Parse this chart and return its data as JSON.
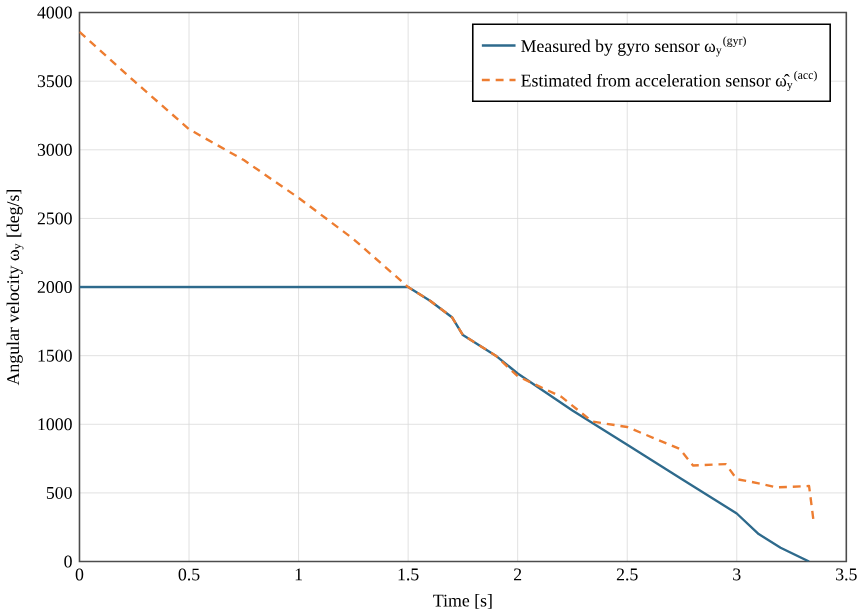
{
  "chart_data": {
    "type": "line",
    "xlabel": "Time [s]",
    "ylabel": "Angular velocity ω$_{y}$ [deg/s]",
    "xlim": [
      0,
      3.5
    ],
    "ylim": [
      0,
      4000
    ],
    "xticks": [
      0,
      0.5,
      1,
      1.5,
      2,
      2.5,
      3,
      3.5
    ],
    "yticks": [
      0,
      500,
      1000,
      1500,
      2000,
      2500,
      3000,
      3500,
      4000
    ],
    "grid": true,
    "legend": "top right",
    "series": [
      {
        "name": "Measured by gyro sensor ω$_{y}$$^{(gyr)}$",
        "color": "#2e6a8c",
        "line_style": "solid",
        "x": [
          0,
          1.5,
          1.6,
          1.7,
          1.75,
          1.9,
          2.0,
          2.25,
          2.5,
          2.75,
          3.0,
          3.1,
          3.2,
          3.33
        ],
        "values": [
          2000,
          2000,
          1900,
          1780,
          1650,
          1500,
          1370,
          1100,
          850,
          600,
          350,
          200,
          100,
          0
        ]
      },
      {
        "name": "Estimated from acceleration sensor ω̂$_{y}$$^{(acc)}$",
        "color": "#ed7d31",
        "line_style": "dashed",
        "x": [
          0,
          0.25,
          0.5,
          0.75,
          1.0,
          1.25,
          1.5,
          1.6,
          1.7,
          1.75,
          1.9,
          2.0,
          2.2,
          2.34,
          2.5,
          2.74,
          2.8,
          2.95,
          3.0,
          3.1,
          3.18,
          3.33,
          3.35
        ],
        "values": [
          3860,
          3500,
          3150,
          2925,
          2650,
          2350,
          2000,
          1900,
          1780,
          1650,
          1500,
          1350,
          1200,
          1020,
          980,
          820,
          700,
          710,
          600,
          570,
          540,
          550,
          300
        ]
      }
    ]
  }
}
